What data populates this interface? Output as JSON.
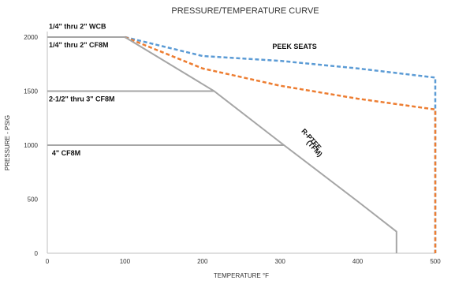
{
  "chart_data": {
    "type": "line",
    "title": "PRESSURE/TEMPERATURE CURVE",
    "xlabel": "TEMPERATURE  °F",
    "ylabel": "PRESSURE - PSIG",
    "xlim": [
      0,
      500
    ],
    "ylim": [
      0,
      2000
    ],
    "xticks": [
      0,
      100,
      200,
      300,
      400,
      500
    ],
    "yticks": [
      0,
      500,
      1000,
      1500,
      2000
    ],
    "grid": false,
    "series": [
      {
        "color": "#5b9bd5",
        "style": "dashed",
        "points": [
          [
            100,
            2000
          ],
          [
            200,
            1825
          ],
          [
            300,
            1780
          ],
          [
            400,
            1710
          ],
          [
            500,
            1625
          ],
          [
            500,
            0
          ]
        ]
      },
      {
        "color": "#ed7d31",
        "style": "dashed",
        "points": [
          [
            100,
            2000
          ],
          [
            200,
            1710
          ],
          [
            300,
            1550
          ],
          [
            400,
            1430
          ],
          [
            500,
            1330
          ],
          [
            500,
            0
          ]
        ]
      },
      {
        "color": "#a5a5a5",
        "style": "solid",
        "points": [
          [
            0,
            2000
          ],
          [
            100,
            2000
          ],
          [
            215,
            1500
          ],
          [
            305,
            1000
          ],
          [
            400,
            480
          ],
          [
            450,
            200
          ],
          [
            450,
            0
          ]
        ]
      },
      {
        "color": "#a5a5a5",
        "style": "solid",
        "points": [
          [
            0,
            1500
          ],
          [
            215,
            1500
          ]
        ]
      },
      {
        "color": "#a5a5a5",
        "style": "solid",
        "points": [
          [
            0,
            1000
          ],
          [
            305,
            1000
          ]
        ]
      }
    ],
    "annotations": [
      {
        "text": "1/4\" thru 2\" WCB",
        "x": 2,
        "y": 2075
      },
      {
        "text": "1/4\" thru 2\" CF8M",
        "x": 2,
        "y": 1905
      },
      {
        "text": "2-1/2\" thru 3\" CF8M",
        "x": 2,
        "y": 1405
      },
      {
        "text": "4\" CF8M",
        "x": 6,
        "y": 905
      },
      {
        "text": "PEEK SEATS",
        "x": 290,
        "y": 1890
      }
    ],
    "rotated_annotations": [
      {
        "text": "R-PTFE",
        "x": 338,
        "y": 1040
      },
      {
        "text": "(TFM)",
        "x": 342,
        "y": 955
      }
    ]
  }
}
